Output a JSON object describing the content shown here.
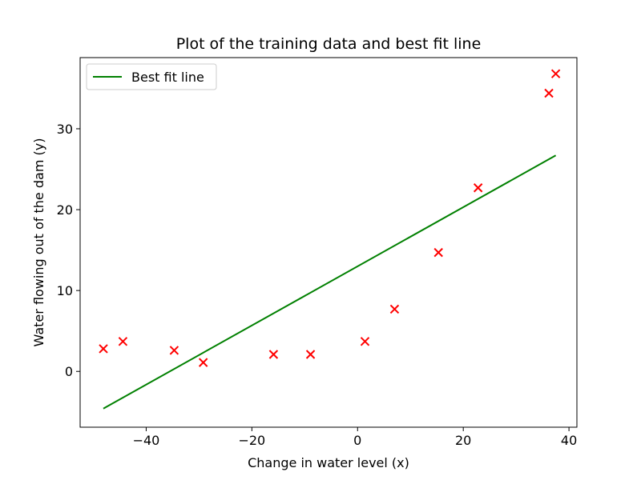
{
  "chart_data": {
    "type": "scatter",
    "title": "Plot of the training data and best fit line",
    "xlabel": "Change in water level (x)",
    "ylabel": "Water flowing out of the dam (y)",
    "xlim": [
      -52.5,
      41.5
    ],
    "ylim": [
      -6.9,
      38.8
    ],
    "xticks": [
      -40,
      -20,
      0,
      20,
      40
    ],
    "xtick_labels": [
      "−40",
      "−20",
      "0",
      "20",
      "40"
    ],
    "yticks": [
      0,
      10,
      20,
      30
    ],
    "ytick_labels": [
      "0",
      "10",
      "20",
      "30"
    ],
    "grid": false,
    "legend_position": "top-left",
    "series": [
      {
        "name": "",
        "type": "scatter",
        "marker": "x",
        "color": "#ff0000",
        "x": [
          -48.1,
          -44.4,
          -34.7,
          -29.2,
          -15.9,
          -8.9,
          1.4,
          7.0,
          15.3,
          22.8,
          36.2,
          37.5
        ],
        "y": [
          2.8,
          3.7,
          2.6,
          1.1,
          2.1,
          2.1,
          3.7,
          7.7,
          14.7,
          22.7,
          34.4,
          36.8
        ]
      },
      {
        "name": "Best fit line",
        "type": "line",
        "color": "#008000",
        "x": [
          -48.1,
          37.5
        ],
        "y": [
          -4.6,
          26.7
        ]
      }
    ]
  }
}
